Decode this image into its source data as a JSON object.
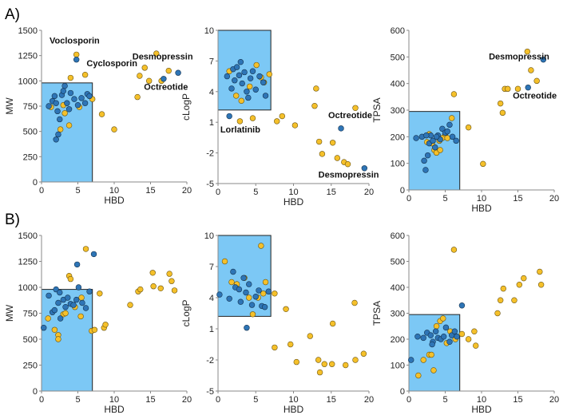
{
  "figure": {
    "panel_labels": [
      "A)",
      "B)"
    ]
  },
  "colors": {
    "blue": "#2e75b6",
    "yellow": "#f5c02a",
    "box": "#7cc8f5",
    "outline": "#222222"
  },
  "chart_data": [
    {
      "id": "A-MW",
      "type": "scatter",
      "panel": "A)",
      "xlabel": "HBD",
      "ylabel": "MW",
      "xlim": [
        0,
        20
      ],
      "ylim": [
        0,
        1500
      ],
      "xticks": [
        0,
        5,
        10,
        15,
        20
      ],
      "yticks": [
        0,
        250,
        500,
        750,
        1000,
        1250,
        1500
      ],
      "region": {
        "x": [
          0,
          7
        ],
        "y": [
          0,
          980
        ]
      },
      "blue": [
        [
          1,
          750
        ],
        [
          1.5,
          800
        ],
        [
          1.8,
          850
        ],
        [
          2,
          780
        ],
        [
          2.2,
          700
        ],
        [
          2.5,
          620
        ],
        [
          2.8,
          860
        ],
        [
          3,
          900
        ],
        [
          3.2,
          950
        ],
        [
          3.5,
          780
        ],
        [
          3.8,
          720
        ],
        [
          4,
          880
        ],
        [
          4.5,
          820
        ],
        [
          5,
          760
        ],
        [
          5.5,
          830
        ],
        [
          6,
          780
        ],
        [
          6.3,
          870
        ],
        [
          6.6,
          850
        ],
        [
          2,
          420
        ],
        [
          2.3,
          470
        ],
        [
          4.8,
          1210
        ],
        [
          16.8,
          1020
        ],
        [
          18.8,
          1080
        ]
      ],
      "yellow": [
        [
          1.3,
          740
        ],
        [
          2.6,
          520
        ],
        [
          3,
          760
        ],
        [
          3.2,
          680
        ],
        [
          3.8,
          560
        ],
        [
          4,
          1030
        ],
        [
          4.8,
          1260
        ],
        [
          5.2,
          740
        ],
        [
          6,
          1060
        ],
        [
          7,
          820
        ],
        [
          8.3,
          670
        ],
        [
          10,
          520
        ],
        [
          13.2,
          840
        ],
        [
          13.5,
          1050
        ],
        [
          14.2,
          1130
        ],
        [
          14.8,
          1000
        ],
        [
          15.8,
          1270
        ],
        [
          16.5,
          1000
        ],
        [
          17.5,
          1100
        ]
      ],
      "annotations": [
        {
          "text": "Voclosporin",
          "x": 1.1,
          "y": 1370
        },
        {
          "text": "Cyclosporin",
          "x": 6.2,
          "y": 1145
        },
        {
          "text": "Desmopressin",
          "x": 12.5,
          "y": 1210
        },
        {
          "text": "Octreotide",
          "x": 14.1,
          "y": 910
        }
      ]
    },
    {
      "id": "A-cLogP",
      "type": "scatter",
      "panel": "A)",
      "xlabel": "HBD",
      "ylabel": "cLogP",
      "xlim": [
        0,
        20
      ],
      "ylim": [
        -5,
        10
      ],
      "xticks": [
        0,
        5,
        10,
        15,
        20
      ],
      "yticks": [
        -5,
        -2,
        1,
        4,
        7,
        10
      ],
      "region": {
        "x": [
          0,
          7
        ],
        "y": [
          2.2,
          10
        ]
      },
      "blue": [
        [
          1.2,
          5.5
        ],
        [
          1.8,
          4.3
        ],
        [
          2,
          6.2
        ],
        [
          2.2,
          5.1
        ],
        [
          2.5,
          6.4
        ],
        [
          2.8,
          5.6
        ],
        [
          3,
          6.9
        ],
        [
          3.2,
          4.8
        ],
        [
          3.5,
          5.9
        ],
        [
          3.8,
          4.0
        ],
        [
          4,
          3.4
        ],
        [
          4.3,
          5.3
        ],
        [
          4.6,
          6.0
        ],
        [
          5,
          4.2
        ],
        [
          5.5,
          5.5
        ],
        [
          6,
          4.9
        ],
        [
          6.3,
          3.6
        ],
        [
          1.5,
          1.6
        ],
        [
          16.3,
          0.4
        ],
        [
          19.4,
          -3.5
        ]
      ],
      "yellow": [
        [
          1.5,
          6.0
        ],
        [
          2.4,
          3.6
        ],
        [
          3.1,
          3.1
        ],
        [
          4.2,
          4.5
        ],
        [
          5.1,
          6.6
        ],
        [
          5.7,
          5.4
        ],
        [
          6.1,
          4.9
        ],
        [
          6.8,
          5.7
        ],
        [
          2.9,
          1.1
        ],
        [
          4.6,
          1.4
        ],
        [
          7.8,
          1.1
        ],
        [
          8.5,
          1.6
        ],
        [
          10.2,
          0.7
        ],
        [
          12.8,
          2.6
        ],
        [
          13.0,
          4.3
        ],
        [
          13.4,
          -0.9
        ],
        [
          13.8,
          -2.1
        ],
        [
          15.2,
          -1.0
        ],
        [
          15.8,
          -2.5
        ],
        [
          16.7,
          -2.9
        ],
        [
          17.2,
          -3.1
        ],
        [
          18.2,
          2.4
        ]
      ],
      "annotations": [
        {
          "text": "Lorlatinib",
          "x": 0.3,
          "y": 0.0
        },
        {
          "text": "Octreotide",
          "x": 14.6,
          "y": 1.4
        },
        {
          "text": "Desmopressin",
          "x": 13.3,
          "y": -4.4
        }
      ]
    },
    {
      "id": "A-TPSA",
      "type": "scatter",
      "panel": "A)",
      "xlabel": "HBD",
      "ylabel": "TPSA",
      "xlim": [
        0,
        20
      ],
      "ylim": [
        0,
        600
      ],
      "xticks": [
        0,
        5,
        10,
        15,
        20
      ],
      "yticks": [
        0,
        100,
        200,
        300,
        400,
        500,
        600
      ],
      "region": {
        "x": [
          0,
          7
        ],
        "y": [
          0,
          295
        ]
      },
      "blue": [
        [
          1,
          195
        ],
        [
          1.8,
          200
        ],
        [
          2.1,
          110
        ],
        [
          2.3,
          75
        ],
        [
          2.6,
          130
        ],
        [
          2.8,
          175
        ],
        [
          3,
          205
        ],
        [
          3.3,
          185
        ],
        [
          3.6,
          160
        ],
        [
          4,
          205
        ],
        [
          4.3,
          190
        ],
        [
          4.6,
          230
        ],
        [
          5,
          215
        ],
        [
          5.3,
          220
        ],
        [
          5.6,
          245
        ],
        [
          6,
          200
        ],
        [
          6.5,
          185
        ],
        [
          2.4,
          205
        ],
        [
          3.8,
          200
        ],
        [
          18.5,
          490
        ],
        [
          16.4,
          385
        ]
      ],
      "yellow": [
        [
          2.5,
          180
        ],
        [
          2.8,
          210
        ],
        [
          3.2,
          175
        ],
        [
          3.5,
          150
        ],
        [
          3.8,
          140
        ],
        [
          4.2,
          185
        ],
        [
          4.6,
          195
        ],
        [
          5,
          210
        ],
        [
          5.3,
          195
        ],
        [
          5.9,
          270
        ],
        [
          6.2,
          360
        ],
        [
          4.3,
          150
        ],
        [
          8.2,
          235
        ],
        [
          10.2,
          98
        ],
        [
          12.6,
          325
        ],
        [
          12.9,
          290
        ],
        [
          13.2,
          380
        ],
        [
          13.6,
          380
        ],
        [
          15,
          380
        ],
        [
          16.3,
          520
        ],
        [
          16.8,
          450
        ],
        [
          17.6,
          410
        ]
      ],
      "annotations": [
        {
          "text": "Desmopressin",
          "x": 11,
          "y": 490
        },
        {
          "text": "Octreotide",
          "x": 14.3,
          "y": 343
        }
      ]
    },
    {
      "id": "B-MW",
      "type": "scatter",
      "panel": "B)",
      "xlabel": "HBD",
      "ylabel": "MW",
      "xlim": [
        0,
        20
      ],
      "ylim": [
        0,
        1500
      ],
      "xticks": [
        0,
        5,
        10,
        15,
        20
      ],
      "yticks": [
        0,
        250,
        500,
        750,
        1000,
        1250,
        1500
      ],
      "region": {
        "x": [
          0,
          7
        ],
        "y": [
          0,
          980
        ]
      },
      "blue": [
        [
          0.3,
          610
        ],
        [
          1,
          920
        ],
        [
          1.5,
          760
        ],
        [
          1.8,
          780
        ],
        [
          2,
          980
        ],
        [
          2.3,
          850
        ],
        [
          2.6,
          700
        ],
        [
          3,
          880
        ],
        [
          3.3,
          810
        ],
        [
          3.6,
          900
        ],
        [
          4,
          840
        ],
        [
          4.4,
          830
        ],
        [
          4.8,
          880
        ],
        [
          5.1,
          1000
        ],
        [
          5.6,
          850
        ],
        [
          6.1,
          800
        ],
        [
          6.6,
          960
        ],
        [
          4.9,
          1220
        ],
        [
          7.2,
          1320
        ],
        [
          2.5,
          950
        ]
      ],
      "yellow": [
        [
          0.9,
          700
        ],
        [
          1.8,
          590
        ],
        [
          2.3,
          540
        ],
        [
          2.3,
          500
        ],
        [
          3,
          740
        ],
        [
          3.3,
          750
        ],
        [
          3.8,
          1110
        ],
        [
          4,
          1080
        ],
        [
          4.6,
          810
        ],
        [
          5.4,
          720
        ],
        [
          5.5,
          900
        ],
        [
          6.1,
          1370
        ],
        [
          6.9,
          580
        ],
        [
          7.3,
          590
        ],
        [
          8,
          940
        ],
        [
          8.6,
          610
        ],
        [
          8.8,
          640
        ],
        [
          12.2,
          830
        ],
        [
          13.3,
          960
        ],
        [
          13.6,
          980
        ],
        [
          15.3,
          1140
        ],
        [
          15.4,
          1010
        ],
        [
          16.4,
          990
        ],
        [
          17.6,
          1130
        ],
        [
          17.9,
          1060
        ],
        [
          18.3,
          970
        ]
      ]
    },
    {
      "id": "B-cLogP",
      "type": "scatter",
      "panel": "B)",
      "xlabel": "HBD",
      "ylabel": "cLogP",
      "xlim": [
        0,
        20
      ],
      "ylim": [
        -5,
        10
      ],
      "xticks": [
        0,
        5,
        10,
        15,
        20
      ],
      "yticks": [
        -5,
        -2,
        1,
        4,
        7,
        10
      ],
      "region": {
        "x": [
          0,
          7
        ],
        "y": [
          2.2,
          10
        ]
      },
      "blue": [
        [
          0.2,
          4.3
        ],
        [
          1.5,
          3.9
        ],
        [
          2,
          6.5
        ],
        [
          2.3,
          5.0
        ],
        [
          2.8,
          4.8
        ],
        [
          3,
          3.6
        ],
        [
          3.4,
          5.9
        ],
        [
          3.7,
          4.5
        ],
        [
          4.1,
          5.3
        ],
        [
          4.5,
          3.3
        ],
        [
          5,
          4.1
        ],
        [
          5.4,
          4.7
        ],
        [
          5.8,
          3.2
        ],
        [
          6.2,
          3.1
        ],
        [
          6.7,
          4.6
        ],
        [
          3.8,
          1.1
        ]
      ],
      "yellow": [
        [
          0.9,
          7.5
        ],
        [
          1.8,
          5.5
        ],
        [
          2.5,
          5.3
        ],
        [
          3.5,
          5.9
        ],
        [
          4.1,
          4.0
        ],
        [
          4.6,
          2.4
        ],
        [
          5.3,
          4.0
        ],
        [
          6,
          4.4
        ],
        [
          5.7,
          9.0
        ],
        [
          6.3,
          5.5
        ],
        [
          7.5,
          4.4
        ],
        [
          7.5,
          -0.8
        ],
        [
          9,
          2.9
        ],
        [
          9.6,
          -0.5
        ],
        [
          10.4,
          -2.2
        ],
        [
          12.2,
          0.3
        ],
        [
          13.3,
          -2.0
        ],
        [
          13.5,
          -3.2
        ],
        [
          14.1,
          -2.4
        ],
        [
          15.1,
          -2.4
        ],
        [
          15.2,
          1.5
        ],
        [
          16.9,
          -2.5
        ],
        [
          18.1,
          3.5
        ],
        [
          18.2,
          -2.0
        ],
        [
          19.3,
          -1.4
        ]
      ]
    },
    {
      "id": "B-TPSA",
      "type": "scatter",
      "panel": "B)",
      "xlabel": "HBD",
      "ylabel": "TPSA",
      "xlim": [
        0,
        20
      ],
      "ylim": [
        0,
        600
      ],
      "xticks": [
        0,
        5,
        10,
        15,
        20
      ],
      "yticks": [
        0,
        100,
        200,
        300,
        400,
        500,
        600
      ],
      "region": {
        "x": [
          0,
          7
        ],
        "y": [
          0,
          295
        ]
      },
      "blue": [
        [
          0.3,
          120
        ],
        [
          1.2,
          210
        ],
        [
          2,
          205
        ],
        [
          2.5,
          225
        ],
        [
          3,
          215
        ],
        [
          3.3,
          190
        ],
        [
          3.7,
          230
        ],
        [
          4,
          205
        ],
        [
          4.4,
          200
        ],
        [
          4.8,
          210
        ],
        [
          5.1,
          245
        ],
        [
          5.6,
          190
        ],
        [
          5.9,
          215
        ],
        [
          6.3,
          230
        ],
        [
          6.6,
          210
        ],
        [
          3.2,
          180
        ],
        [
          7.3,
          330
        ]
      ],
      "yellow": [
        [
          1.3,
          60
        ],
        [
          2,
          120
        ],
        [
          2.8,
          140
        ],
        [
          3.1,
          140
        ],
        [
          3.4,
          80
        ],
        [
          3.8,
          250
        ],
        [
          4.3,
          270
        ],
        [
          4.7,
          280
        ],
        [
          5.2,
          185
        ],
        [
          5.7,
          230
        ],
        [
          6.2,
          545
        ],
        [
          6.4,
          200
        ],
        [
          7.3,
          220
        ],
        [
          8.2,
          200
        ],
        [
          9,
          230
        ],
        [
          9.2,
          175
        ],
        [
          12.2,
          300
        ],
        [
          12.6,
          350
        ],
        [
          13,
          395
        ],
        [
          14.5,
          350
        ],
        [
          15.2,
          410
        ],
        [
          15.8,
          435
        ],
        [
          18,
          460
        ],
        [
          18.2,
          410
        ]
      ]
    }
  ]
}
